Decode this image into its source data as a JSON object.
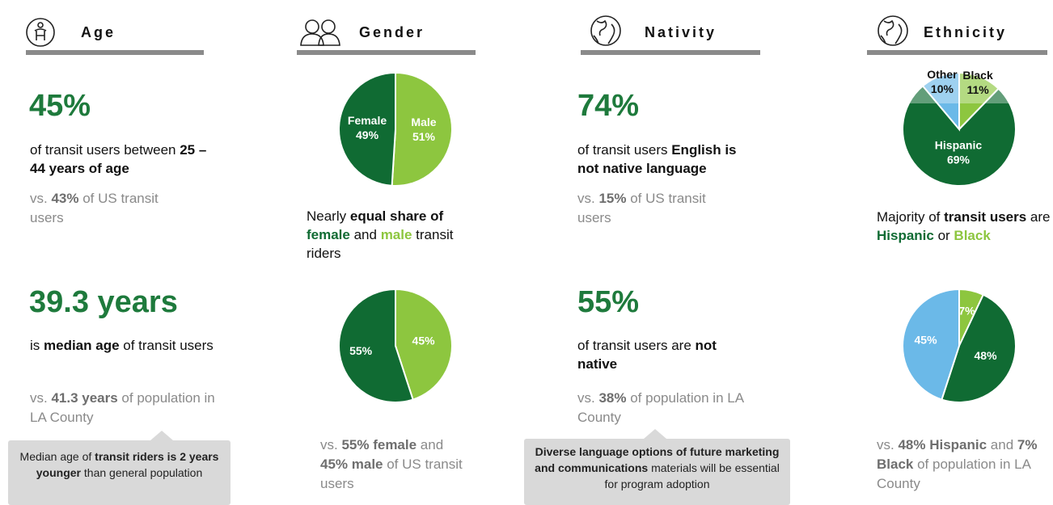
{
  "age": {
    "title": "Age",
    "stat1": "45%",
    "desc1": [
      {
        "text": "of transit users between "
      },
      {
        "text": "25 – 44 years of age",
        "bold": true
      }
    ],
    "compare1": [
      {
        "text": "vs. "
      },
      {
        "text": "43%",
        "bold": true
      },
      {
        "text": " of US transit users"
      }
    ],
    "stat2": "39.3 years",
    "desc2": [
      {
        "text": "is "
      },
      {
        "text": "median age",
        "bold": true
      },
      {
        "text": " of transit users"
      }
    ],
    "compare2": [
      {
        "text": "vs. "
      },
      {
        "text": "41.3 years",
        "bold": true
      },
      {
        "text": " of population in LA County"
      }
    ],
    "callout": [
      {
        "text": "Median age of "
      },
      {
        "text": "transit riders is 2 years younger",
        "bold": true
      },
      {
        "text": " than general population"
      }
    ]
  },
  "gender": {
    "title": "Gender",
    "pie1": {
      "labels": [
        "Male",
        "Female"
      ],
      "values": [
        51,
        49
      ],
      "value_labels": [
        "51%",
        "49%"
      ],
      "colors": [
        "#8dc63f",
        "#106b33"
      ]
    },
    "desc1": [
      {
        "text": "Nearly "
      },
      {
        "text": "equal share of",
        "bold": true
      },
      {
        "text": " "
      },
      {
        "text": "female",
        "bold": true,
        "color": "#106b33"
      },
      {
        "text": " and "
      },
      {
        "text": "male",
        "bold": true,
        "color": "#8dc63f"
      },
      {
        "text": " transit riders"
      }
    ],
    "pie2": {
      "values": [
        45,
        55
      ],
      "value_labels": [
        "45%",
        "55%"
      ],
      "colors": [
        "#8dc63f",
        "#106b33"
      ]
    },
    "compare2": [
      {
        "text": "vs. "
      },
      {
        "text": "55% female",
        "bold": true
      },
      {
        "text": " and "
      },
      {
        "text": "45% male",
        "bold": true
      },
      {
        "text": " of US transit users"
      }
    ]
  },
  "nativity": {
    "title": "Nativity",
    "stat1": "74%",
    "desc1": [
      {
        "text": "of transit users "
      },
      {
        "text": "English is not native language",
        "bold": true
      }
    ],
    "compare1": [
      {
        "text": "vs. "
      },
      {
        "text": "15%",
        "bold": true
      },
      {
        "text": " of US transit users"
      }
    ],
    "stat2": "55%",
    "desc2": [
      {
        "text": "of transit users are "
      },
      {
        "text": "not native",
        "bold": true
      }
    ],
    "compare2": [
      {
        "text": "vs. "
      },
      {
        "text": "38%",
        "bold": true
      },
      {
        "text": " of population in LA County"
      }
    ],
    "callout": [
      {
        "text": "Diverse language options of future marketing and communications",
        "bold": true
      },
      {
        "text": " materials will be essential for program adoption"
      }
    ]
  },
  "ethnicity": {
    "title": "Ethnicity",
    "pie1": {
      "labels": [
        "Black",
        "Hispanic",
        "Other"
      ],
      "values": [
        11,
        69,
        10
      ],
      "value_labels": [
        "11%",
        "69%",
        "10%"
      ],
      "colors": [
        "#8dc63f",
        "#106b33",
        "#6bb9e8"
      ]
    },
    "desc1": [
      {
        "text": "Majority of "
      },
      {
        "text": "transit users",
        "bold": true
      },
      {
        "text": " are "
      },
      {
        "text": "Hispanic",
        "bold": true,
        "color": "#106b33"
      },
      {
        "text": " or "
      },
      {
        "text": "Black",
        "bold": true,
        "color": "#8dc63f"
      }
    ],
    "pie2": {
      "values": [
        7,
        48,
        45
      ],
      "value_labels": [
        "7%",
        "48%",
        "45%"
      ],
      "colors": [
        "#8dc63f",
        "#106b33",
        "#6bb9e8"
      ]
    },
    "compare2": [
      {
        "text": "vs. "
      },
      {
        "text": "48% Hispanic",
        "bold": true
      },
      {
        "text": " and "
      },
      {
        "text": "7% Black",
        "bold": true
      },
      {
        "text": " of population in LA County"
      }
    ]
  }
}
